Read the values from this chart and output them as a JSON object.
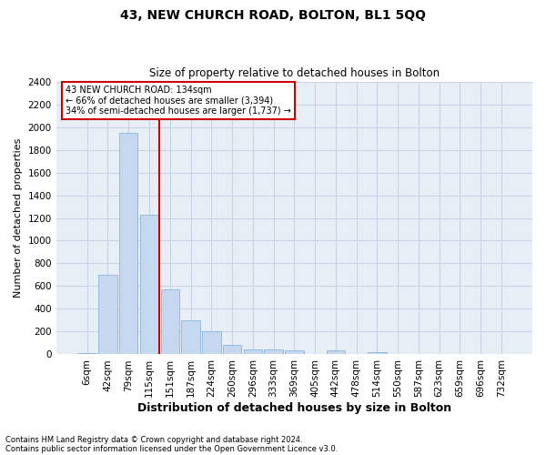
{
  "title": "43, NEW CHURCH ROAD, BOLTON, BL1 5QQ",
  "subtitle": "Size of property relative to detached houses in Bolton",
  "xlabel": "Distribution of detached houses by size in Bolton",
  "ylabel": "Number of detached properties",
  "footnote1": "Contains HM Land Registry data © Crown copyright and database right 2024.",
  "footnote2": "Contains public sector information licensed under the Open Government Licence v3.0.",
  "bar_labels": [
    "6sqm",
    "42sqm",
    "79sqm",
    "115sqm",
    "151sqm",
    "187sqm",
    "224sqm",
    "260sqm",
    "296sqm",
    "333sqm",
    "369sqm",
    "405sqm",
    "442sqm",
    "478sqm",
    "514sqm",
    "550sqm",
    "587sqm",
    "623sqm",
    "659sqm",
    "696sqm",
    "732sqm"
  ],
  "bar_heights": [
    15,
    700,
    1950,
    1230,
    570,
    300,
    200,
    80,
    45,
    40,
    35,
    0,
    35,
    0,
    18,
    0,
    0,
    0,
    0,
    0,
    0
  ],
  "bar_color": "#c5d8f0",
  "bar_edge_color": "#7aadd4",
  "grid_color": "#c8d4e6",
  "background_color": "#e8eef6",
  "vline_color": "#cc0000",
  "vline_pos": 3.5,
  "annotation_lines": [
    "43 NEW CHURCH ROAD: 134sqm",
    "← 66% of detached houses are smaller (3,394)",
    "34% of semi-detached houses are larger (1,737) →"
  ],
  "ylim": [
    0,
    2400
  ],
  "yticks": [
    0,
    200,
    400,
    600,
    800,
    1000,
    1200,
    1400,
    1600,
    1800,
    2000,
    2200,
    2400
  ],
  "title_fontsize": 10,
  "subtitle_fontsize": 8.5,
  "ylabel_fontsize": 8,
  "xlabel_fontsize": 9,
  "tick_fontsize": 7.5,
  "annot_fontsize": 7,
  "footnote_fontsize": 6
}
